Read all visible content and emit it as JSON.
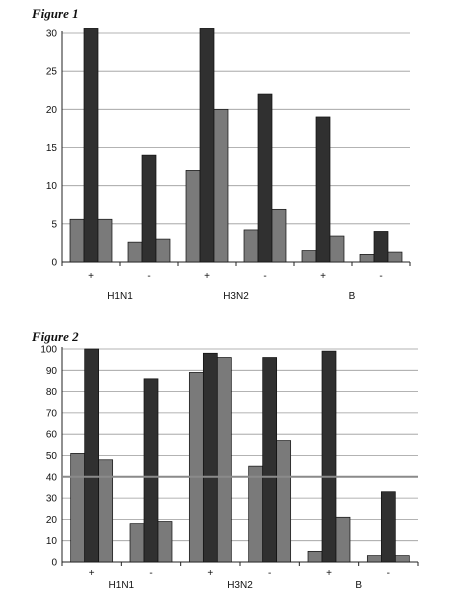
{
  "figures": {
    "f1_label": "Figure 1",
    "f2_label": "Figure 2"
  },
  "colors": {
    "series_light": "#7a7a7a",
    "series_dark": "#303030",
    "grid": "#9a9a9a",
    "axis": "#222222",
    "reference_line": "#8a8a8a"
  },
  "chart_data": [
    {
      "type": "bar",
      "title": "",
      "xlabel": "",
      "ylabel": "",
      "ylim": [
        0,
        30
      ],
      "yticks": [
        0,
        5,
        10,
        15,
        20,
        25,
        30
      ],
      "grid": true,
      "legend": "none",
      "categories": [
        "+",
        "-",
        "+",
        "-",
        "+",
        "-"
      ],
      "groups": [
        "H1N1",
        "H3N2",
        "B"
      ],
      "series": [
        {
          "values": [
            5.6,
            2.6,
            12,
            4.2,
            1.5,
            1.0
          ]
        },
        {
          "values": [
            30.6,
            14,
            30.6,
            22,
            19,
            4
          ]
        },
        {
          "values": [
            5.6,
            3,
            20,
            6.9,
            3.4,
            1.3
          ]
        }
      ]
    },
    {
      "type": "bar",
      "title": "",
      "xlabel": "",
      "ylabel": "",
      "ylim": [
        0,
        100
      ],
      "yticks": [
        0,
        10,
        20,
        30,
        40,
        50,
        60,
        70,
        80,
        90,
        100
      ],
      "grid": true,
      "legend": "none",
      "reference_line": 40,
      "categories": [
        "+",
        "-",
        "+",
        "-",
        "+",
        "-"
      ],
      "groups": [
        "H1N1",
        "H3N2",
        "B"
      ],
      "series": [
        {
          "values": [
            51,
            18,
            89,
            45,
            5,
            3
          ]
        },
        {
          "values": [
            100,
            86,
            98,
            96,
            99,
            33
          ]
        },
        {
          "values": [
            48,
            19,
            96,
            57,
            21,
            3
          ]
        }
      ]
    }
  ]
}
